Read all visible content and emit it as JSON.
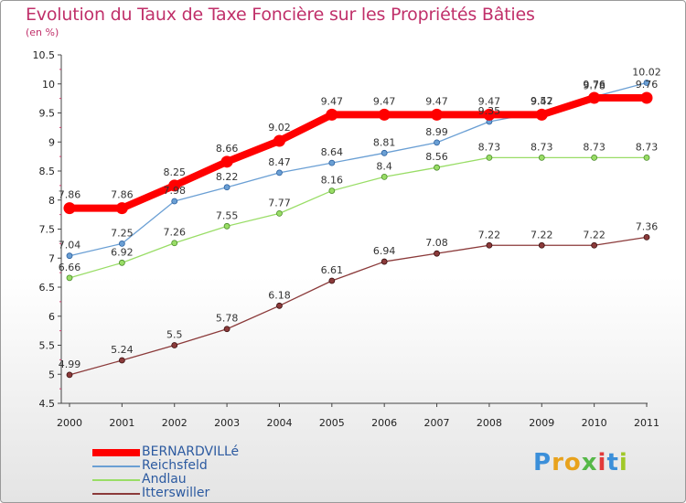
{
  "chart_data": {
    "type": "line",
    "title": "Evolution du Taux de Taxe Foncière sur les Propriétés Bâties",
    "ylabel": "(en %)",
    "xlabel": "",
    "x": [
      "2000",
      "2001",
      "2002",
      "2003",
      "2004",
      "2005",
      "2006",
      "2007",
      "2008",
      "2009",
      "2010",
      "2011"
    ],
    "ylim": [
      4.5,
      10.5
    ],
    "yticks": [
      "4.5",
      "5",
      "5.5",
      "6",
      "6.5",
      "7",
      "7.5",
      "8",
      "8.5",
      "9",
      "9.5",
      "10",
      "10.5"
    ],
    "grid": false,
    "legend_position": "bottom-left",
    "series": [
      {
        "name": "BERNARDVILLé",
        "color": "#ff0000",
        "values": [
          7.86,
          7.86,
          8.25,
          8.66,
          9.02,
          9.47,
          9.47,
          9.47,
          9.47,
          9.47,
          9.76,
          9.76
        ],
        "labels": [
          "7.86",
          "7.86",
          "8.25",
          "8.66",
          "9.02",
          "9.47",
          "9.47",
          "9.47",
          "9.47",
          "9.47",
          "9.76",
          "9.76"
        ]
      },
      {
        "name": "Reichsfeld",
        "color": "#6a9fd4",
        "values": [
          7.04,
          7.25,
          7.98,
          8.22,
          8.47,
          8.64,
          8.81,
          8.99,
          9.35,
          9.52,
          9.78,
          10.02
        ],
        "labels": [
          "7.04",
          "7.25",
          "7.98",
          "8.22",
          "8.47",
          "8.64",
          "8.81",
          "8.99",
          "9.35",
          "9.52",
          "9.78",
          "10.02"
        ]
      },
      {
        "name": "Andlau",
        "color": "#99dd66",
        "values": [
          6.66,
          6.92,
          7.26,
          7.55,
          7.77,
          8.16,
          8.4,
          8.56,
          8.73,
          8.73,
          8.73,
          8.73
        ],
        "labels": [
          "6.66",
          "6.92",
          "7.26",
          "7.55",
          "7.77",
          "8.16",
          "8.4",
          "8.56",
          "8.73",
          "8.73",
          "8.73",
          "8.73"
        ]
      },
      {
        "name": "Itterswiller",
        "color": "#8b3a3a",
        "values": [
          4.99,
          5.24,
          5.5,
          5.78,
          6.18,
          6.61,
          6.94,
          7.08,
          7.22,
          7.22,
          7.22,
          7.36
        ],
        "labels": [
          "4.99",
          "5.24",
          "5.5",
          "5.78",
          "6.18",
          "6.61",
          "6.94",
          "7.08",
          "7.22",
          "7.22",
          "7.22",
          "7.36"
        ]
      }
    ]
  },
  "logo": {
    "letters": [
      "P",
      "r",
      "o",
      "x",
      "i",
      "t",
      "i"
    ],
    "colors": [
      "#3b8fd9",
      "#e8a21c",
      "#e8a21c",
      "#56b848",
      "#e23a3a",
      "#3b8fd9",
      "#a0c828"
    ]
  }
}
